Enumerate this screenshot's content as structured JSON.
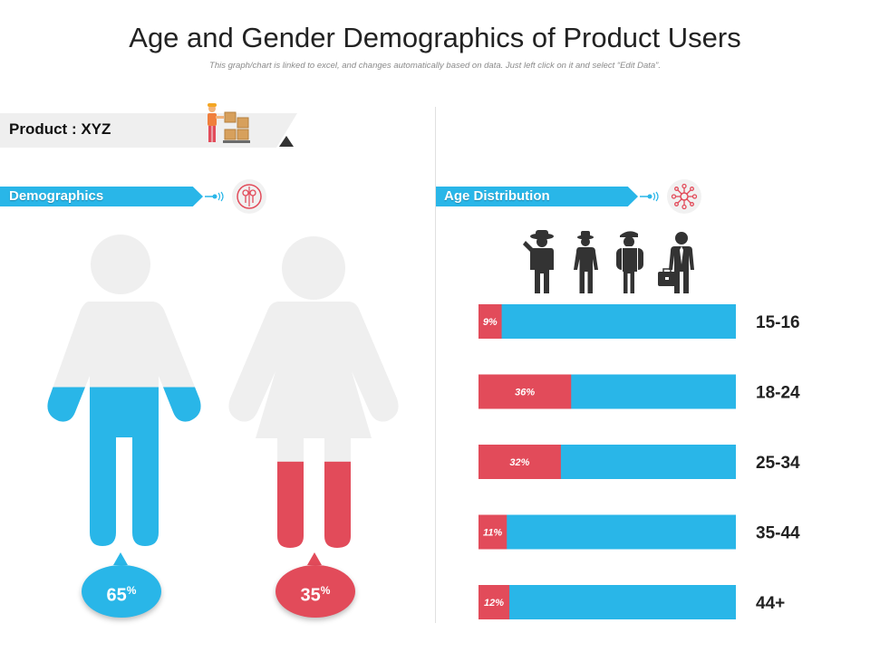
{
  "header": {
    "title": "Age and Gender Demographics of Product Users",
    "subtitle": "This graph/chart is linked to excel, and changes automatically based on data. Just left click on it and select “Edit Data”."
  },
  "product": {
    "label": "Product : XYZ",
    "icon": "worker-with-boxes-icon"
  },
  "demographics": {
    "ribbon_label": "Demographics",
    "icon": "gender-circle-icon",
    "male": {
      "value": "65",
      "unit": "%",
      "color": "#29b6e8"
    },
    "female": {
      "value": "35",
      "unit": "%",
      "color": "#e24b5a"
    }
  },
  "age_distribution": {
    "ribbon_label": "Age Distribution",
    "icon": "network-icon",
    "people_icons": [
      "farmer-icon",
      "man-with-hat-icon",
      "hiker-icon",
      "businessman-icon"
    ]
  },
  "colors": {
    "accent_blue": "#29b6e8",
    "accent_red": "#e24b5a",
    "neutral": "#efefef"
  },
  "chart_data": {
    "type": "bar",
    "orientation": "horizontal",
    "categories": [
      "15-16",
      "18-24",
      "25-34",
      "35-44",
      "44+"
    ],
    "series": [
      {
        "values": [
          9,
          36,
          32,
          11,
          12
        ],
        "labels": [
          "9%",
          "36%",
          "32%",
          "11%",
          "12%"
        ],
        "color": "#e24b5a"
      }
    ],
    "xlim": [
      0,
      100
    ],
    "gender_split": [
      {
        "value": 65,
        "label": "65%",
        "color": "#29b6e8"
      },
      {
        "value": 35,
        "label": "35%",
        "color": "#e24b5a"
      }
    ]
  }
}
